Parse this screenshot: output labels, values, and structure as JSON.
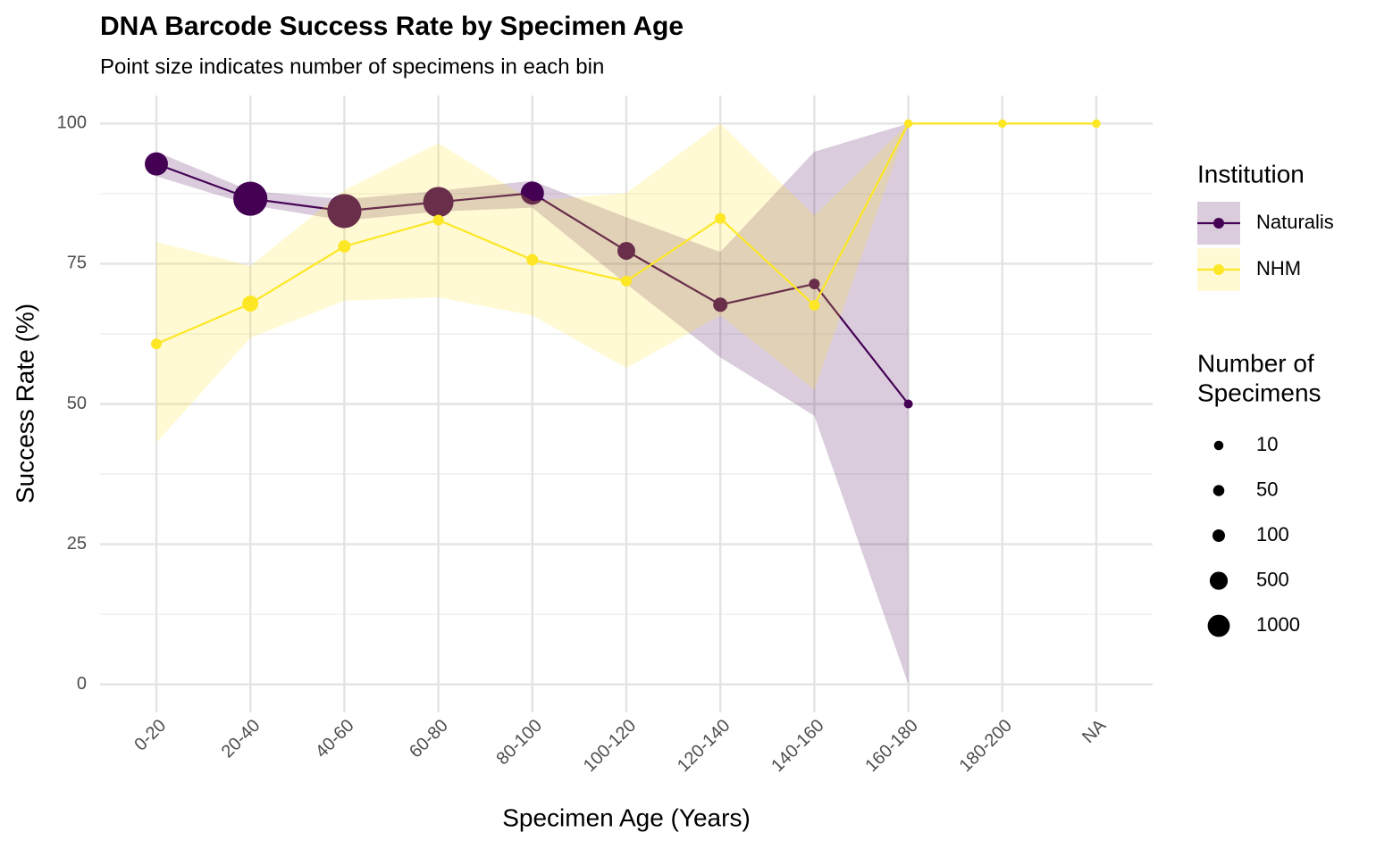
{
  "chart_data": {
    "type": "line",
    "title": "DNA Barcode Success Rate by Specimen Age",
    "subtitle": "Point size indicates number of specimens in each bin",
    "x_label": "Specimen Age (Years)",
    "y_label": "Success Rate (%)",
    "categories": [
      "0-20",
      "20-40",
      "40-60",
      "60-80",
      "80-100",
      "100-120",
      "120-140",
      "140-160",
      "160-180",
      "180-200",
      "NA"
    ],
    "ylim": [
      -5,
      105
    ],
    "yticks": [
      0,
      25,
      50,
      75,
      100
    ],
    "minor_yticks": [
      12.5,
      37.5,
      62.5,
      87.5
    ],
    "grid": true,
    "legend_title": "Institution",
    "size_legend": {
      "title_lines": [
        "Number of",
        "Specimens"
      ],
      "values": [
        10,
        50,
        100,
        500,
        1000
      ]
    },
    "series": [
      {
        "name": "Naturalis",
        "color": "#440154",
        "values": [
          92.8,
          86.6,
          84.4,
          86.0,
          87.6,
          77.3,
          67.7,
          71.4,
          50,
          null,
          null
        ],
        "sizes": [
          1150,
          3400,
          3400,
          2500,
          1150,
          480,
          200,
          36,
          4,
          null,
          null
        ],
        "lower": [
          90.6,
          85.5,
          82.7,
          84.3,
          85.0,
          71.4,
          58.3,
          47.9,
          0,
          null,
          null
        ],
        "upper": [
          95.0,
          88.0,
          86.5,
          88.0,
          89.8,
          83.3,
          77.1,
          95.0,
          100,
          null,
          null
        ]
      },
      {
        "name": "NHM",
        "color": "#FDE725",
        "values": [
          60.7,
          67.9,
          78.1,
          82.8,
          75.7,
          71.9,
          83.1,
          67.6,
          100,
          100,
          100
        ],
        "sizes": [
          36,
          320,
          100,
          36,
          64,
          36,
          36,
          36,
          1,
          1,
          1
        ],
        "lower": [
          43.1,
          61.8,
          68.4,
          69.0,
          65.8,
          56.4,
          65.8,
          52.5,
          100,
          100,
          100
        ],
        "upper": [
          78.9,
          74.6,
          88.1,
          96.5,
          86.2,
          87.6,
          100,
          83.6,
          100,
          100,
          100
        ]
      }
    ]
  }
}
